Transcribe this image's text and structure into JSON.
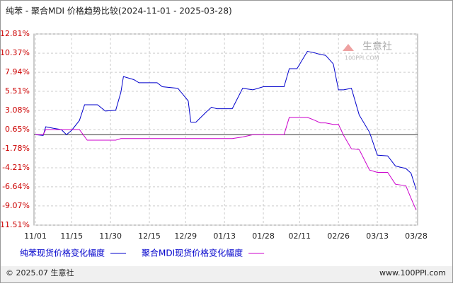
{
  "chart_data": {
    "type": "line",
    "title": "纯苯 - 聚合MDI 价格趋势比较(2024-11-01 - 2025-03-28)",
    "watermark": [
      "生意社",
      "100PPI.COM"
    ],
    "footer_left": "© 2025.07 生意社",
    "footer_right": "www.100PPI.com",
    "ylim": [
      -11.51,
      12.81
    ],
    "yticks": [
      {
        "value": 12.81,
        "label": "12.81%"
      },
      {
        "value": 10.37,
        "label": "10.37%"
      },
      {
        "value": 7.94,
        "label": "7.94%"
      },
      {
        "value": 5.51,
        "label": "5.51%"
      },
      {
        "value": 3.08,
        "label": "3.08%"
      },
      {
        "value": 0.65,
        "label": "0.65%"
      },
      {
        "value": -1.78,
        "label": "-1.78%"
      },
      {
        "value": -4.21,
        "label": "-4.21%"
      },
      {
        "value": -6.64,
        "label": "-6.64%"
      },
      {
        "value": -9.07,
        "label": "-9.07%"
      },
      {
        "value": -11.51,
        "label": "-11.51%"
      }
    ],
    "xticks": [
      "11/01",
      "11/15",
      "11/30",
      "12/15",
      "12/29",
      "01/13",
      "01/28",
      "02/11",
      "02/26",
      "03/13",
      "03/28"
    ],
    "grid": true,
    "series": [
      {
        "name": "纯苯现货价格变化幅度",
        "color": "#0000cc",
        "x": [
          "11/01",
          "11/04",
          "11/05",
          "11/08",
          "11/11",
          "11/13",
          "11/15",
          "11/18",
          "11/20",
          "11/25",
          "11/28",
          "12/02",
          "12/04",
          "12/05",
          "12/09",
          "12/11",
          "12/18",
          "12/20",
          "12/26",
          "12/30",
          "12/31",
          "01/02",
          "01/06",
          "01/08",
          "01/10",
          "01/16",
          "01/20",
          "01/24",
          "01/28",
          "02/05",
          "02/07",
          "02/10",
          "02/14",
          "02/17",
          "02/19",
          "02/21",
          "02/24",
          "02/26",
          "02/28",
          "03/03",
          "03/06",
          "03/10",
          "03/13",
          "03/17",
          "03/20",
          "03/24",
          "03/26",
          "03/28"
        ],
        "values": [
          0,
          -0.1,
          1.0,
          0.8,
          0.65,
          0,
          0.55,
          1.8,
          3.8,
          3.8,
          3.0,
          3.1,
          5.4,
          7.4,
          7.0,
          6.6,
          6.6,
          6.1,
          5.9,
          4.3,
          1.6,
          1.6,
          2.9,
          3.5,
          3.3,
          3.3,
          5.9,
          5.7,
          6.1,
          6.1,
          8.4,
          8.4,
          10.6,
          10.4,
          10.2,
          10.1,
          9.0,
          5.7,
          5.7,
          5.9,
          2.5,
          0.3,
          -2.6,
          -2.7,
          -4.0,
          -4.3,
          -4.9,
          -7.0
        ]
      },
      {
        "name": "聚合MDI现货价格变化幅度",
        "color": "#cc00cc",
        "x": [
          "11/01",
          "11/04",
          "11/05",
          "11/18",
          "11/21",
          "12/02",
          "12/04",
          "01/16",
          "01/20",
          "01/24",
          "02/05",
          "02/07",
          "02/14",
          "02/17",
          "02/19",
          "02/21",
          "02/24",
          "02/26",
          "02/28",
          "03/03",
          "03/06",
          "03/10",
          "03/13",
          "03/17",
          "03/20",
          "03/24",
          "03/26",
          "03/28"
        ],
        "values": [
          0,
          0,
          0.65,
          0.65,
          -0.7,
          -0.7,
          -0.5,
          -0.5,
          -0.3,
          0,
          0,
          2.2,
          2.2,
          1.8,
          1.5,
          1.5,
          1.3,
          1.3,
          -0.1,
          -1.8,
          -1.9,
          -4.5,
          -4.8,
          -4.8,
          -6.3,
          -6.5,
          -8.1,
          -9.6
        ]
      }
    ]
  }
}
